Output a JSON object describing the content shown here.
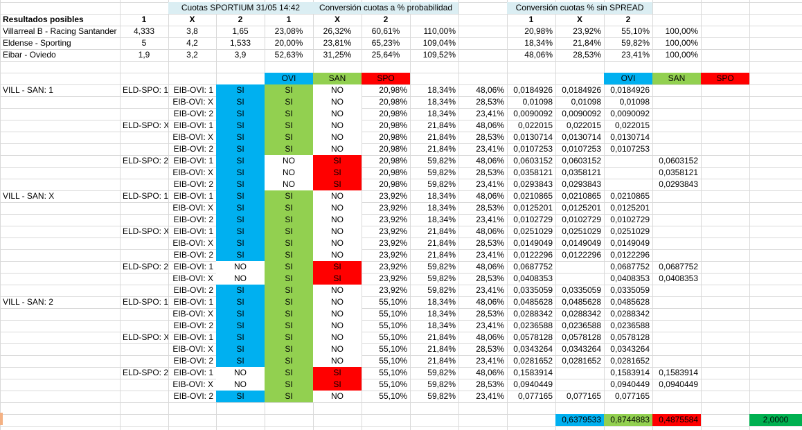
{
  "colors": {
    "header_bg": "#dbeef3",
    "ovi": "#00b0f0",
    "san": "#92d050",
    "spo": "#ff0000",
    "total": "#00b050"
  },
  "header": {
    "cuotas_title": "Cuotas SPORTIUM 31/05  14:42",
    "prob_title": "Conversión cuotas a % probabilidad",
    "spread_title": "Conversión cuotas  %  sin SPREAD",
    "resultados": "Resultados posibles",
    "col_1": "1",
    "col_x": "X",
    "col_2": "2"
  },
  "matches": [
    {
      "name": "Villarreal B - Racing Santander",
      "o1": "4,333",
      "ox": "3,8",
      "o2": "1,65",
      "p1": "23,08%",
      "px": "26,32%",
      "p2": "60,61%",
      "sum": "110,00%",
      "s1": "20,98%",
      "sx": "23,92%",
      "s2": "55,10%",
      "ssum": "100,00%"
    },
    {
      "name": "Eldense - Sporting",
      "o1": "5",
      "ox": "4,2",
      "o2": "1,533",
      "p1": "20,00%",
      "px": "23,81%",
      "p2": "65,23%",
      "sum": "109,04%",
      "s1": "18,34%",
      "sx": "21,84%",
      "s2": "59,82%",
      "ssum": "100,00%"
    },
    {
      "name": "Eibar - Oviedo",
      "o1": "1,9",
      "ox": "3,2",
      "o2": "3,9",
      "p1": "52,63%",
      "px": "31,25%",
      "p2": "25,64%",
      "sum": "109,52%",
      "s1": "48,06%",
      "sx": "28,53%",
      "s2": "23,41%",
      "ssum": "100,00%"
    }
  ],
  "teams": {
    "ovi": "OVI",
    "san": "SAN",
    "spo": "SPO"
  },
  "rows": [
    {
      "a": "VILL - SAN: 1",
      "b": "ELD-SPO: 1",
      "c": "EIB-OVI: 1",
      "ovi": "SI",
      "san": "SI",
      "spo": "NO",
      "p1": "20,98%",
      "p2": "18,34%",
      "p3": "48,06%",
      "prob": "0,0184926",
      "vo": "0,0184926",
      "vs": "0,0184926",
      "vp": ""
    },
    {
      "a": "",
      "b": "",
      "c": "EIB-OVI: X",
      "ovi": "SI",
      "san": "SI",
      "spo": "NO",
      "p1": "20,98%",
      "p2": "18,34%",
      "p3": "28,53%",
      "prob": "0,01098",
      "vo": "0,01098",
      "vs": "0,01098",
      "vp": ""
    },
    {
      "a": "",
      "b": "",
      "c": "EIB-OVI: 2",
      "ovi": "SI",
      "san": "SI",
      "spo": "NO",
      "p1": "20,98%",
      "p2": "18,34%",
      "p3": "23,41%",
      "prob": "0,0090092",
      "vo": "0,0090092",
      "vs": "0,0090092",
      "vp": ""
    },
    {
      "a": "",
      "b": "ELD-SPO: X",
      "c": "EIB-OVI: 1",
      "ovi": "SI",
      "san": "SI",
      "spo": "NO",
      "p1": "20,98%",
      "p2": "21,84%",
      "p3": "48,06%",
      "prob": "0,022015",
      "vo": "0,022015",
      "vs": "0,022015",
      "vp": ""
    },
    {
      "a": "",
      "b": "",
      "c": "EIB-OVI: X",
      "ovi": "SI",
      "san": "SI",
      "spo": "NO",
      "p1": "20,98%",
      "p2": "21,84%",
      "p3": "28,53%",
      "prob": "0,0130714",
      "vo": "0,0130714",
      "vs": "0,0130714",
      "vp": ""
    },
    {
      "a": "",
      "b": "",
      "c": "EIB-OVI: 2",
      "ovi": "SI",
      "san": "SI",
      "spo": "NO",
      "p1": "20,98%",
      "p2": "21,84%",
      "p3": "23,41%",
      "prob": "0,0107253",
      "vo": "0,0107253",
      "vs": "0,0107253",
      "vp": ""
    },
    {
      "a": "",
      "b": "ELD-SPO: 2",
      "c": "EIB-OVI: 1",
      "ovi": "SI",
      "san": "NO",
      "spo": "SI",
      "p1": "20,98%",
      "p2": "59,82%",
      "p3": "48,06%",
      "prob": "0,0603152",
      "vo": "0,0603152",
      "vs": "",
      "vp": "0,0603152"
    },
    {
      "a": "",
      "b": "",
      "c": "EIB-OVI: X",
      "ovi": "SI",
      "san": "NO",
      "spo": "SI",
      "p1": "20,98%",
      "p2": "59,82%",
      "p3": "28,53%",
      "prob": "0,0358121",
      "vo": "0,0358121",
      "vs": "",
      "vp": "0,0358121"
    },
    {
      "a": "",
      "b": "",
      "c": "EIB-OVI: 2",
      "ovi": "SI",
      "san": "NO",
      "spo": "SI",
      "p1": "20,98%",
      "p2": "59,82%",
      "p3": "23,41%",
      "prob": "0,0293843",
      "vo": "0,0293843",
      "vs": "",
      "vp": "0,0293843"
    },
    {
      "a": "VILL - SAN: X",
      "b": "ELD-SPO: 1",
      "c": "EIB-OVI: 1",
      "ovi": "SI",
      "san": "SI",
      "spo": "NO",
      "p1": "23,92%",
      "p2": "18,34%",
      "p3": "48,06%",
      "prob": "0,0210865",
      "vo": "0,0210865",
      "vs": "0,0210865",
      "vp": ""
    },
    {
      "a": "",
      "b": "",
      "c": "EIB-OVI: X",
      "ovi": "SI",
      "san": "SI",
      "spo": "NO",
      "p1": "23,92%",
      "p2": "18,34%",
      "p3": "28,53%",
      "prob": "0,0125201",
      "vo": "0,0125201",
      "vs": "0,0125201",
      "vp": ""
    },
    {
      "a": "",
      "b": "",
      "c": "EIB-OVI: 2",
      "ovi": "SI",
      "san": "SI",
      "spo": "NO",
      "p1": "23,92%",
      "p2": "18,34%",
      "p3": "23,41%",
      "prob": "0,0102729",
      "vo": "0,0102729",
      "vs": "0,0102729",
      "vp": ""
    },
    {
      "a": "",
      "b": "ELD-SPO: X",
      "c": "EIB-OVI: 1",
      "ovi": "SI",
      "san": "SI",
      "spo": "NO",
      "p1": "23,92%",
      "p2": "21,84%",
      "p3": "48,06%",
      "prob": "0,0251029",
      "vo": "0,0251029",
      "vs": "0,0251029",
      "vp": ""
    },
    {
      "a": "",
      "b": "",
      "c": "EIB-OVI: X",
      "ovi": "SI",
      "san": "SI",
      "spo": "NO",
      "p1": "23,92%",
      "p2": "21,84%",
      "p3": "28,53%",
      "prob": "0,0149049",
      "vo": "0,0149049",
      "vs": "0,0149049",
      "vp": ""
    },
    {
      "a": "",
      "b": "",
      "c": "EIB-OVI: 2",
      "ovi": "SI",
      "san": "SI",
      "spo": "NO",
      "p1": "23,92%",
      "p2": "21,84%",
      "p3": "23,41%",
      "prob": "0,0122296",
      "vo": "0,0122296",
      "vs": "0,0122296",
      "vp": ""
    },
    {
      "a": "",
      "b": "ELD-SPO: 2",
      "c": "EIB-OVI: 1",
      "ovi": "NO",
      "san": "SI",
      "spo": "SI",
      "p1": "23,92%",
      "p2": "59,82%",
      "p3": "48,06%",
      "prob": "0,0687752",
      "vo": "",
      "vs": "0,0687752",
      "vp": "0,0687752"
    },
    {
      "a": "",
      "b": "",
      "c": "EIB-OVI: X",
      "ovi": "NO",
      "san": "SI",
      "spo": "SI",
      "p1": "23,92%",
      "p2": "59,82%",
      "p3": "28,53%",
      "prob": "0,0408353",
      "vo": "",
      "vs": "0,0408353",
      "vp": "0,0408353"
    },
    {
      "a": "",
      "b": "",
      "c": "EIB-OVI: 2",
      "ovi": "SI",
      "san": "SI",
      "spo": "NO",
      "p1": "23,92%",
      "p2": "59,82%",
      "p3": "23,41%",
      "prob": "0,0335059",
      "vo": "0,0335059",
      "vs": "0,0335059",
      "vp": ""
    },
    {
      "a": "VILL - SAN: 2",
      "b": "ELD-SPO: 1",
      "c": "EIB-OVI: 1",
      "ovi": "SI",
      "san": "SI",
      "spo": "NO",
      "p1": "55,10%",
      "p2": "18,34%",
      "p3": "48,06%",
      "prob": "0,0485628",
      "vo": "0,0485628",
      "vs": "0,0485628",
      "vp": ""
    },
    {
      "a": "",
      "b": "",
      "c": "EIB-OVI: X",
      "ovi": "SI",
      "san": "SI",
      "spo": "NO",
      "p1": "55,10%",
      "p2": "18,34%",
      "p3": "28,53%",
      "prob": "0,0288342",
      "vo": "0,0288342",
      "vs": "0,0288342",
      "vp": ""
    },
    {
      "a": "",
      "b": "",
      "c": "EIB-OVI: 2",
      "ovi": "SI",
      "san": "SI",
      "spo": "NO",
      "p1": "55,10%",
      "p2": "18,34%",
      "p3": "23,41%",
      "prob": "0,0236588",
      "vo": "0,0236588",
      "vs": "0,0236588",
      "vp": ""
    },
    {
      "a": "",
      "b": "ELD-SPO: X",
      "c": "EIB-OVI: 1",
      "ovi": "SI",
      "san": "SI",
      "spo": "NO",
      "p1": "55,10%",
      "p2": "21,84%",
      "p3": "48,06%",
      "prob": "0,0578128",
      "vo": "0,0578128",
      "vs": "0,0578128",
      "vp": ""
    },
    {
      "a": "",
      "b": "",
      "c": "EIB-OVI: X",
      "ovi": "SI",
      "san": "SI",
      "spo": "NO",
      "p1": "55,10%",
      "p2": "21,84%",
      "p3": "28,53%",
      "prob": "0,0343264",
      "vo": "0,0343264",
      "vs": "0,0343264",
      "vp": ""
    },
    {
      "a": "",
      "b": "",
      "c": "EIB-OVI: 2",
      "ovi": "SI",
      "san": "SI",
      "spo": "NO",
      "p1": "55,10%",
      "p2": "21,84%",
      "p3": "23,41%",
      "prob": "0,0281652",
      "vo": "0,0281652",
      "vs": "0,0281652",
      "vp": ""
    },
    {
      "a": "",
      "b": "ELD-SPO: 2",
      "c": "EIB-OVI: 1",
      "ovi": "NO",
      "san": "SI",
      "spo": "SI",
      "p1": "55,10%",
      "p2": "59,82%",
      "p3": "48,06%",
      "prob": "0,1583914",
      "vo": "",
      "vs": "0,1583914",
      "vp": "0,1583914"
    },
    {
      "a": "",
      "b": "",
      "c": "EIB-OVI: X",
      "ovi": "NO",
      "san": "SI",
      "spo": "SI",
      "p1": "55,10%",
      "p2": "59,82%",
      "p3": "28,53%",
      "prob": "0,0940449",
      "vo": "",
      "vs": "0,0940449",
      "vp": "0,0940449"
    },
    {
      "a": "",
      "b": "",
      "c": "EIB-OVI: 2",
      "ovi": "SI",
      "san": "SI",
      "spo": "NO",
      "p1": "55,10%",
      "p2": "59,82%",
      "p3": "23,41%",
      "prob": "0,077165",
      "vo": "0,077165",
      "vs": "0,077165",
      "vp": ""
    }
  ],
  "totals": {
    "ovi": "0,6379533",
    "san": "0,8744883",
    "spo": "0,4875584",
    "sum": "2,0000"
  }
}
